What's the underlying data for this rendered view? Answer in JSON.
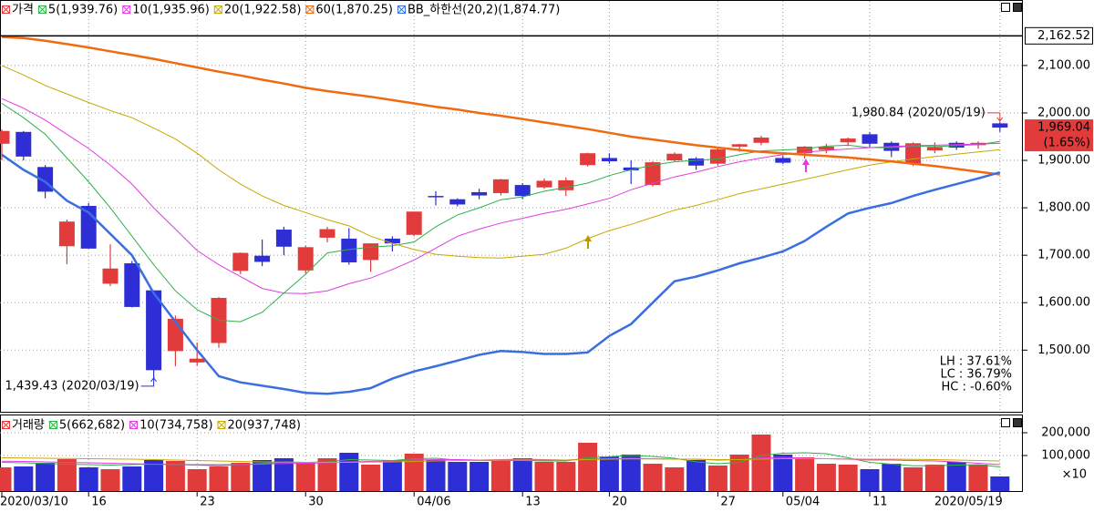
{
  "chart_data": [
    {
      "type": "candlestick",
      "name": "가격",
      "up_color": "#e23b3b",
      "down_color": "#2e2ed6",
      "open": [
        1935,
        1960,
        1886,
        1719,
        1804,
        1640,
        1683,
        1626,
        1498,
        1474,
        1515,
        1667,
        1699,
        1754,
        1668,
        1737,
        1735,
        1690,
        1735,
        1743,
        1825,
        1818,
        1833,
        1831,
        1848,
        1843,
        1837,
        1890,
        1905,
        1885,
        1848,
        1900,
        1904,
        1893,
        1929,
        1937,
        1905,
        1915,
        1922,
        1938,
        1955,
        1937,
        1893,
        1921,
        1937,
        1932,
        1978
      ],
      "high": [
        1965,
        1962,
        1890,
        1775,
        1810,
        1723,
        1688,
        1626,
        1573,
        1516,
        1612,
        1706,
        1733,
        1760,
        1720,
        1760,
        1757,
        1725,
        1740,
        1792,
        1835,
        1820,
        1840,
        1861,
        1852,
        1862,
        1864,
        1916,
        1915,
        1900,
        1898,
        1917,
        1907,
        1925,
        1935,
        1952,
        1910,
        1930,
        1935,
        1948,
        1960,
        1940,
        1938,
        1938,
        1940,
        1940,
        1980.84
      ],
      "low": [
        1900,
        1900,
        1820,
        1681,
        1714,
        1635,
        1590,
        1439.43,
        1466,
        1467,
        1505,
        1660,
        1677,
        1700,
        1662,
        1727,
        1680,
        1665,
        1708,
        1740,
        1805,
        1803,
        1818,
        1826,
        1818,
        1840,
        1825,
        1887,
        1893,
        1850,
        1845,
        1898,
        1880,
        1890,
        1918,
        1932,
        1892,
        1904,
        1915,
        1930,
        1928,
        1907,
        1888,
        1915,
        1922,
        1925,
        1960
      ],
      "close": [
        1962,
        1908,
        1834,
        1771,
        1714,
        1672,
        1591,
        1457.64,
        1566,
        1482,
        1610,
        1705,
        1686,
        1718,
        1717,
        1755,
        1685,
        1725,
        1725,
        1792,
        1824,
        1807,
        1826,
        1860,
        1825,
        1857,
        1858,
        1915,
        1898,
        1879,
        1896,
        1914,
        1889,
        1923,
        1934,
        1948,
        1895,
        1929,
        1929,
        1946,
        1935,
        1920,
        1936,
        1928,
        1927,
        1937,
        1969.04
      ],
      "lines": [
        {
          "name": "5(1,939.76)",
          "color": "#2fb04a",
          "width": 1,
          "values": [
            2020,
            1990,
            1955,
            1905,
            1855,
            1800,
            1740,
            1680,
            1625,
            1585,
            1563,
            1560,
            1580,
            1620,
            1660,
            1705,
            1712,
            1717,
            1720,
            1728,
            1760,
            1785,
            1800,
            1817,
            1823,
            1835,
            1843,
            1852,
            1868,
            1880,
            1890,
            1897,
            1900,
            1903,
            1912,
            1920,
            1922,
            1924,
            1930,
            1932,
            1927,
            1927,
            1930,
            1929,
            1931,
            1933,
            1939.76
          ]
        },
        {
          "name": "10(1,935.96)",
          "color": "#e03ce0",
          "width": 1,
          "values": [
            2030,
            2010,
            1985,
            1955,
            1925,
            1890,
            1850,
            1800,
            1755,
            1710,
            1680,
            1655,
            1630,
            1620,
            1619,
            1625,
            1640,
            1652,
            1670,
            1690,
            1715,
            1740,
            1755,
            1768,
            1778,
            1788,
            1797,
            1808,
            1820,
            1838,
            1852,
            1865,
            1875,
            1887,
            1897,
            1905,
            1912,
            1917,
            1921,
            1924,
            1927,
            1929,
            1931,
            1932,
            1933,
            1934,
            1935.96
          ]
        },
        {
          "name": "20(1,922.58)",
          "color": "#c8a800",
          "width": 1,
          "values": [
            2100,
            2080,
            2058,
            2040,
            2022,
            2005,
            1990,
            1968,
            1945,
            1915,
            1880,
            1850,
            1825,
            1805,
            1790,
            1775,
            1762,
            1740,
            1725,
            1712,
            1702,
            1698,
            1695,
            1694,
            1698,
            1702,
            1715,
            1735,
            1752,
            1765,
            1780,
            1795,
            1805,
            1817,
            1830,
            1840,
            1850,
            1860,
            1870,
            1880,
            1890,
            1897,
            1903,
            1908,
            1913,
            1918,
            1922.58
          ]
        },
        {
          "name": "60(1,870.25)",
          "color": "#f06a10",
          "width": 2.5,
          "values": [
            2160,
            2158,
            2152,
            2145,
            2138,
            2130,
            2122,
            2114,
            2105,
            2096,
            2087,
            2079,
            2070,
            2062,
            2053,
            2046,
            2040,
            2034,
            2027,
            2020,
            2013,
            2007,
            2000,
            1994,
            1987,
            1980,
            1973,
            1966,
            1958,
            1950,
            1944,
            1938,
            1932,
            1927,
            1922,
            1918,
            1915,
            1912,
            1909,
            1906,
            1902,
            1898,
            1893,
            1888,
            1882,
            1876,
            1870.25
          ]
        },
        {
          "name": "BB_하한선(20,2)(1,874.77)",
          "color": "#3a6fe0",
          "width": 2.5,
          "values": [
            1912,
            1880,
            1855,
            1815,
            1790,
            1745,
            1700,
            1620,
            1560,
            1500,
            1445,
            1432,
            1425,
            1418,
            1410,
            1408,
            1412,
            1420,
            1440,
            1455,
            1466,
            1478,
            1490,
            1498,
            1496,
            1492,
            1492,
            1495,
            1530,
            1555,
            1600,
            1645,
            1655,
            1668,
            1683,
            1695,
            1708,
            1730,
            1760,
            1788,
            1800,
            1810,
            1825,
            1838,
            1850,
            1862,
            1874.77
          ]
        }
      ],
      "ylim": [
        1370,
        2215
      ],
      "yticks": [
        {
          "value": 2100,
          "label": "2,100.00"
        },
        {
          "value": 2000,
          "label": "2,000.00"
        },
        {
          "value": 1900,
          "label": "1,900.00"
        },
        {
          "value": 1800,
          "label": "1,800.00"
        },
        {
          "value": 1700,
          "label": "1,700.00"
        },
        {
          "value": 1600,
          "label": "1,600.00"
        },
        {
          "value": 1500,
          "label": "1,500.00"
        }
      ],
      "grid": true,
      "reference_line": {
        "value": 2162.52,
        "label": "2,162.52"
      },
      "last_label": {
        "value": 1969.04,
        "label": "1,969.04"
      },
      "change_label": "(1.65%)",
      "annotations": {
        "high": "1,980.84 (2020/05/19)",
        "low": "1,439.43 (2020/03/19)"
      },
      "stats": [
        "LH : 37.61%",
        "LC : 36.79%",
        "HC : -0.60%"
      ]
    },
    {
      "type": "bar",
      "name": "거래량",
      "categories": [
        "2020/03/10",
        null,
        null,
        null,
        "16",
        null,
        null,
        null,
        null,
        "23",
        null,
        null,
        null,
        null,
        "30",
        null,
        null,
        null,
        null,
        "04/06",
        null,
        null,
        null,
        null,
        "13",
        null,
        null,
        null,
        "20",
        null,
        null,
        null,
        null,
        "27",
        null,
        null,
        "05/04",
        null,
        null,
        null,
        "11",
        null,
        null,
        null,
        null,
        null,
        "2020/05/19"
      ],
      "values": [
        48000,
        52000,
        68000,
        84000,
        48000,
        40000,
        52000,
        80000,
        76000,
        40000,
        52000,
        68000,
        80000,
        88000,
        68000,
        88000,
        112000,
        60000,
        80000,
        108000,
        80000,
        72000,
        72000,
        80000,
        88000,
        72000,
        72000,
        156000,
        96000,
        104000,
        64000,
        48000,
        80000,
        56000,
        104000,
        192000,
        104000,
        92000,
        64000,
        60000,
        40000,
        64000,
        48000,
        60000,
        72000,
        60000,
        8000
      ],
      "lines": [
        {
          "name": "5(662,682)",
          "color": "#2fb04a",
          "values": [
            70000,
            68000,
            65000,
            62000,
            60000,
            58000,
            60000,
            62000,
            60000,
            58000,
            55000,
            60000,
            65000,
            72000,
            70000,
            72000,
            82000,
            80000,
            78000,
            86000,
            88000,
            80000,
            78000,
            78000,
            78000,
            76000,
            76000,
            90000,
            95000,
            100000,
            96000,
            88000,
            72000,
            64000,
            70000,
            100000,
            110000,
            112000,
            108000,
            90000,
            70000,
            62000,
            55000,
            55000,
            58000,
            60000,
            50000
          ]
        },
        {
          "name": "10(734,758)",
          "color": "#e03ce0",
          "values": [
            75000,
            74000,
            72000,
            70000,
            68000,
            66000,
            64000,
            62000,
            61000,
            60000,
            60000,
            60000,
            62000,
            65000,
            66000,
            68000,
            72000,
            74000,
            76000,
            80000,
            82000,
            82000,
            80000,
            82000,
            84000,
            82000,
            80000,
            84000,
            86000,
            88000,
            86000,
            84000,
            84000,
            80000,
            82000,
            90000,
            92000,
            88000,
            86000,
            84000,
            80000,
            80000,
            78000,
            76000,
            72000,
            66000,
            60000
          ]
        },
        {
          "name": "20(937,748)",
          "color": "#c8a800",
          "values": [
            90000,
            89000,
            88000,
            87000,
            86000,
            85000,
            84000,
            82000,
            80000,
            78000,
            76000,
            74000,
            72000,
            71000,
            70000,
            70000,
            70000,
            71000,
            72000,
            74000,
            76000,
            78000,
            79000,
            80000,
            80000,
            80000,
            80000,
            82000,
            84000,
            85000,
            85000,
            84000,
            83000,
            82000,
            82000,
            84000,
            86000,
            86000,
            86000,
            85000,
            84000,
            84000,
            83000,
            82000,
            80000,
            78000,
            76000
          ]
        }
      ],
      "ylim": [
        -52000,
        252000
      ],
      "yticks": [
        {
          "value": 200000,
          "label": "200,000"
        },
        {
          "value": 100000,
          "label": "100,000"
        }
      ],
      "unit": "×10",
      "grid": true
    }
  ]
}
